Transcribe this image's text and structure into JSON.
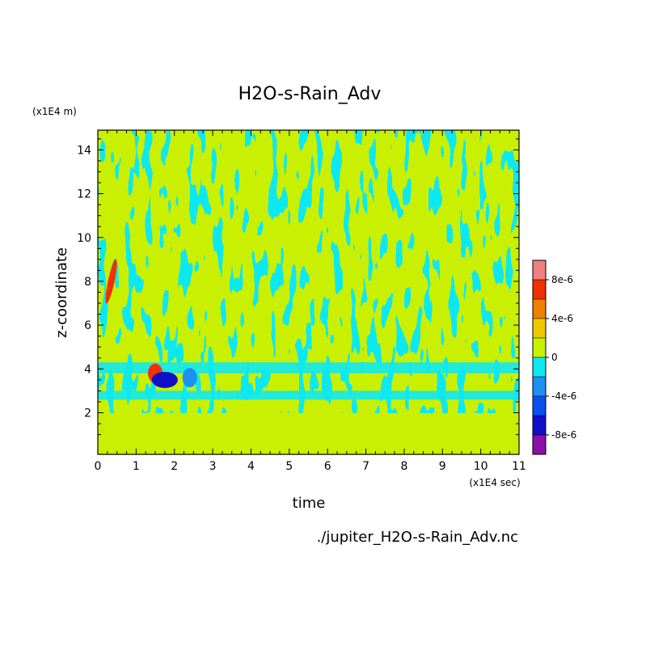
{
  "chart_data": {
    "type": "heatmap",
    "title": "H2O-s-Rain_Adv",
    "xlabel": "time",
    "ylabel": "z-coordinate",
    "x_unit": "(x1E4 sec)",
    "y_unit": "(x1E4 m)",
    "xlim": [
      0,
      11
    ],
    "ylim": [
      0.1,
      14.9
    ],
    "x_ticks": [
      "0",
      "1",
      "2",
      "3",
      "4",
      "5",
      "6",
      "7",
      "8",
      "9",
      "10",
      "11"
    ],
    "y_ticks": [
      "2",
      "4",
      "6",
      "8",
      "10",
      "12",
      "14"
    ],
    "colorbar": {
      "levels": [
        -1e-05,
        -8e-06,
        -6e-06,
        -4e-06,
        -2e-06,
        0,
        2e-06,
        4e-06,
        6e-06,
        8e-06,
        1e-05
      ],
      "colors": [
        "#8a10a8",
        "#1010c8",
        "#0a50f0",
        "#1e90f0",
        "#10e8f0",
        "#c8f000",
        "#f0c800",
        "#f08000",
        "#f03000",
        "#f08080"
      ],
      "tick_values": [
        -8e-06,
        -4e-06,
        0,
        4e-06,
        8e-06
      ],
      "tick_labels": [
        "-8e-6",
        "-4e-6",
        "0",
        "4e-6",
        "8e-6"
      ]
    },
    "features": [
      {
        "x": 0.35,
        "y": 8.0,
        "level": "positive-high"
      },
      {
        "x": 1.5,
        "y": 3.8,
        "level": "positive-high"
      },
      {
        "x": 1.75,
        "y": 3.5,
        "level": "negative-high"
      },
      {
        "x": 2.4,
        "y": 3.6,
        "level": "negative-mid"
      }
    ],
    "bands": [
      {
        "y_from": 2.6,
        "y_to": 3.0,
        "level": "negative-low"
      },
      {
        "y_from": 3.8,
        "y_to": 4.3,
        "level": "negative-low"
      }
    ]
  },
  "footer": {
    "filename": "./jupiter_H2O-s-Rain_Adv.nc"
  }
}
